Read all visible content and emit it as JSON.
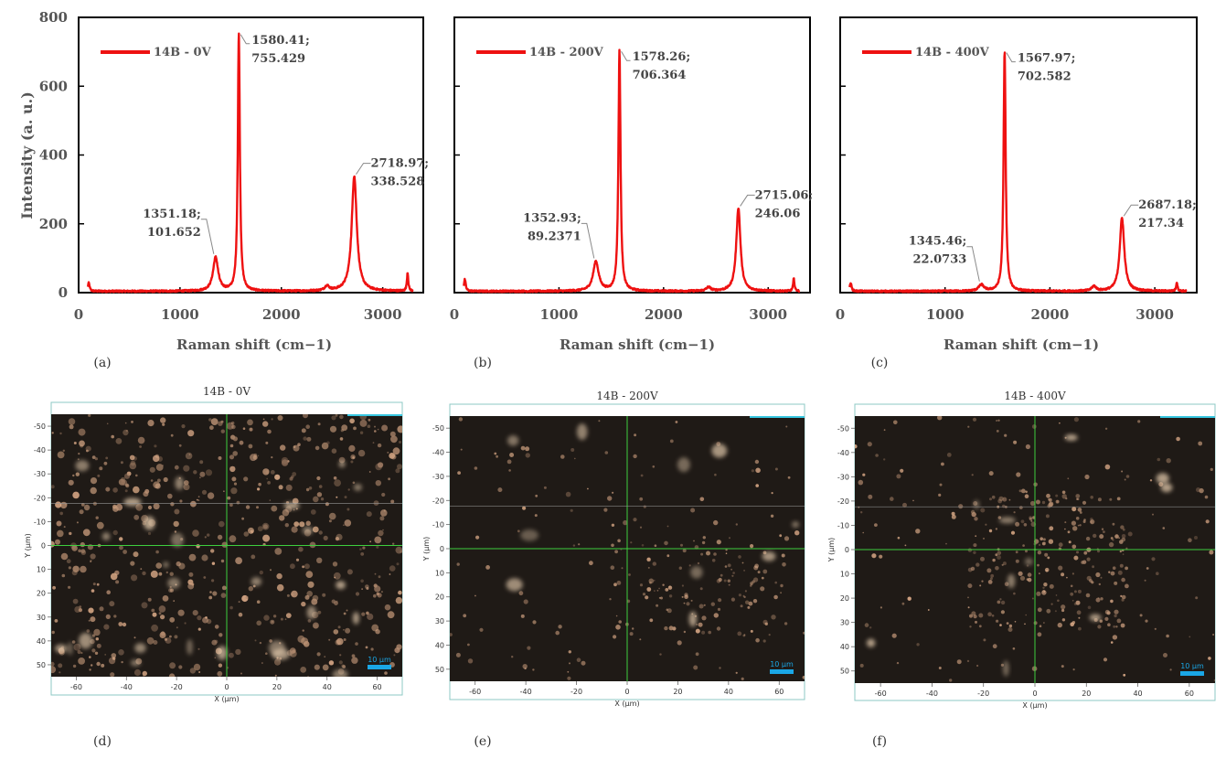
{
  "y_axis_label": "Intensity (a. u.)",
  "y_ticks": [
    0,
    200,
    400,
    600,
    800
  ],
  "panels": [
    {
      "letter": "(a)",
      "chart_data": {
        "type": "line",
        "xlabel": "Raman shift (cm−1)",
        "ylabel": "Intensity (a. u.)",
        "xlim": [
          0,
          3400
        ],
        "ylim": [
          0,
          800
        ],
        "x_ticks": [
          0,
          1000,
          2000,
          3000
        ],
        "y_ticks": [
          0,
          200,
          400,
          600,
          800
        ],
        "legend_position": "top-left",
        "series": [
          {
            "name": "14B - 0V",
            "color": "#ee1111",
            "baseline": 4,
            "peaks": [
              {
                "x": 100,
                "y": 28,
                "w": 10
              },
              {
                "x": 1351.18,
                "y": 101.652,
                "w": 30
              },
              {
                "x": 1580.41,
                "y": 755.429,
                "w": 12
              },
              {
                "x": 2450,
                "y": 18,
                "w": 25
              },
              {
                "x": 2718.97,
                "y": 338.528,
                "w": 30
              },
              {
                "x": 3245,
                "y": 58,
                "w": 8
              }
            ]
          }
        ],
        "annotations": [
          {
            "x": 1580.41,
            "y": 755.429,
            "line1": "1580.41;",
            "line2": "755.429"
          },
          {
            "x": 2718.97,
            "y": 338.528,
            "line1": "2718.97;",
            "line2": "338.528"
          },
          {
            "x": 1351.18,
            "y": 101.652,
            "line1": "1351.18;",
            "line2": "101.652"
          }
        ]
      }
    },
    {
      "letter": "(b)",
      "chart_data": {
        "type": "line",
        "xlabel": "Raman shift (cm−1)",
        "ylabel": "",
        "xlim": [
          0,
          3400
        ],
        "ylim": [
          0,
          800
        ],
        "x_ticks": [
          0,
          1000,
          2000,
          3000
        ],
        "legend_position": "top-left",
        "series": [
          {
            "name": "14B - 200V",
            "color": "#ee1111",
            "baseline": 4,
            "peaks": [
              {
                "x": 100,
                "y": 38,
                "w": 10
              },
              {
                "x": 1352.93,
                "y": 89.2371,
                "w": 32
              },
              {
                "x": 1578.26,
                "y": 706.364,
                "w": 12
              },
              {
                "x": 2430,
                "y": 15,
                "w": 25
              },
              {
                "x": 2715.06,
                "y": 246.06,
                "w": 24
              },
              {
                "x": 3245,
                "y": 40,
                "w": 8
              }
            ]
          }
        ],
        "annotations": [
          {
            "x": 1578.26,
            "y": 706.364,
            "line1": "1578.26;",
            "line2": "706.364"
          },
          {
            "x": 2715.06,
            "y": 246.06,
            "line1": "2715.06;",
            "line2": "246.06"
          },
          {
            "x": 1352.93,
            "y": 89.2371,
            "line1": "1352.93;",
            "line2": "89.2371"
          }
        ]
      }
    },
    {
      "letter": "(c)",
      "chart_data": {
        "type": "line",
        "xlabel": "Raman shift (cm−1)",
        "ylabel": "",
        "xlim": [
          0,
          3400
        ],
        "ylim": [
          0,
          800
        ],
        "x_ticks": [
          0,
          1000,
          2000,
          3000
        ],
        "legend_position": "top-left",
        "series": [
          {
            "name": "14B - 400V",
            "color": "#ee1111",
            "baseline": 4,
            "peaks": [
              {
                "x": 100,
                "y": 28,
                "w": 10
              },
              {
                "x": 1345.46,
                "y": 22.0733,
                "w": 30
              },
              {
                "x": 1567.97,
                "y": 702.582,
                "w": 12
              },
              {
                "x": 2420,
                "y": 18,
                "w": 25
              },
              {
                "x": 2687.18,
                "y": 217.34,
                "w": 26
              },
              {
                "x": 3210,
                "y": 30,
                "w": 8
              }
            ]
          }
        ],
        "annotations": [
          {
            "x": 1567.97,
            "y": 702.582,
            "line1": "1567.97;",
            "line2": "702.582"
          },
          {
            "x": 2687.18,
            "y": 217.34,
            "line1": "2687.18;",
            "line2": "217.34"
          },
          {
            "x": 1345.46,
            "y": 22.0733,
            "line1": "1345.46;",
            "line2": "22.0733"
          }
        ]
      }
    }
  ],
  "micrographs": [
    {
      "letter": "(d)",
      "title": "14B - 0V",
      "xlabel": "X (µm)",
      "ylabel": "Y (µm)",
      "x_ticks": [
        -60,
        -40,
        -20,
        0,
        20,
        40,
        60
      ],
      "y_ticks": [
        -50,
        -40,
        -30,
        -20,
        -10,
        0,
        10,
        20,
        30,
        40,
        50
      ],
      "scale_bar": "10 µm",
      "brightness": "high"
    },
    {
      "letter": "(e)",
      "title": "14B - 200V",
      "xlabel": "X (µm)",
      "ylabel": "Y (µm)",
      "x_ticks": [
        -60,
        -40,
        -20,
        0,
        20,
        40,
        60
      ],
      "y_ticks": [
        -50,
        -40,
        -30,
        -20,
        -10,
        0,
        10,
        20,
        30,
        40,
        50
      ],
      "scale_bar": "10 µm",
      "brightness": "low"
    },
    {
      "letter": "(f)",
      "title": "14B - 400V",
      "xlabel": "X (µm)",
      "ylabel": "Y (µm)",
      "x_ticks": [
        -60,
        -40,
        -20,
        0,
        20,
        40,
        60
      ],
      "y_ticks": [
        -50,
        -40,
        -30,
        -20,
        -10,
        0,
        10,
        20,
        30,
        40,
        50
      ],
      "scale_bar": "10 µm",
      "brightness": "medium"
    }
  ]
}
